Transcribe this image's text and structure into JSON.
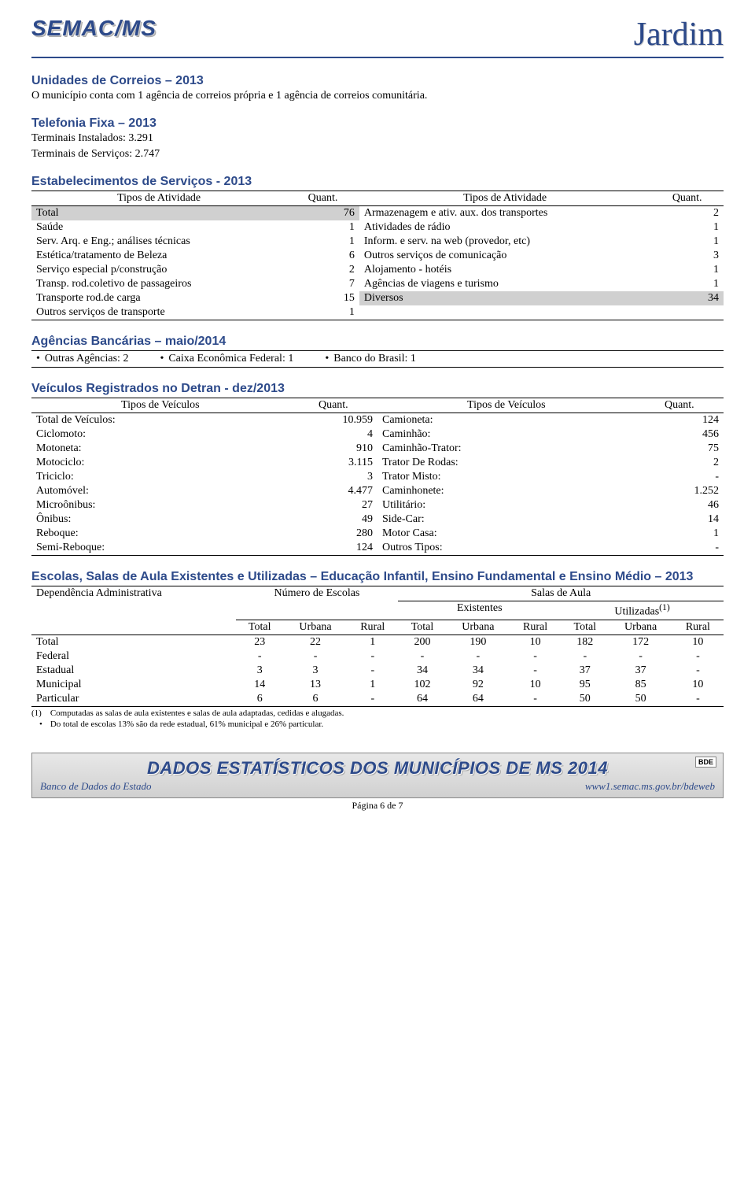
{
  "header": {
    "logo_left": "SEMAC/MS",
    "logo_right": "Jardim"
  },
  "correios": {
    "title": "Unidades de Correios – 2013",
    "text": "O município conta com 1 agência de correios própria e 1 agência de correios comunitária."
  },
  "telefonia": {
    "title": "Telefonia Fixa  – 2013",
    "line1": "Terminais Instalados: 3.291",
    "line2": "Terminais de Serviços: 2.747"
  },
  "estabelecimentos": {
    "title": "Estabelecimentos de Serviços - 2013",
    "col_headers": [
      "Tipos de Atividade",
      "Quant.",
      "Tipos de Atividade",
      "Quant."
    ],
    "rows": [
      {
        "l": "Total",
        "lv": "76",
        "r": "Armazenagem e ativ. aux. dos transportes",
        "rv": "2",
        "shade": true
      },
      {
        "l": "Saúde",
        "lv": "1",
        "r": "Atividades de rádio",
        "rv": "1"
      },
      {
        "l": "Serv. Arq. e Eng.; análises técnicas",
        "lv": "1",
        "r": "Inform. e serv. na web (provedor, etc)",
        "rv": "1"
      },
      {
        "l": "Estética/tratamento de Beleza",
        "lv": "6",
        "r": "Outros serviços de comunicação",
        "rv": "3"
      },
      {
        "l": "Serviço especial p/construção",
        "lv": "2",
        "r": "Alojamento - hotéis",
        "rv": "1"
      },
      {
        "l": "Transp. rod.coletivo de passageiros",
        "lv": "7",
        "r": "Agências de viagens e turismo",
        "rv": "1"
      },
      {
        "l": "Transporte rod.de carga",
        "lv": "15",
        "r": "Diversos",
        "rv": "34",
        "shade_r": true
      },
      {
        "l": "Outros serviços de transporte",
        "lv": "1",
        "r": "",
        "rv": ""
      }
    ]
  },
  "agencias": {
    "title": "Agências Bancárias – maio/2014",
    "items": [
      "Outras Agências: 2",
      "Caixa Econômica Federal: 1",
      "Banco do Brasil: 1"
    ]
  },
  "veiculos": {
    "title": "Veículos Registrados no Detran - dez/2013",
    "col_headers": [
      "Tipos de Veículos",
      "Quant.",
      "Tipos de Veículos",
      "Quant."
    ],
    "rows": [
      {
        "l": "Total de Veículos:",
        "lv": "10.959",
        "r": "Camioneta:",
        "rv": "124"
      },
      {
        "l": "Ciclomoto:",
        "lv": "4",
        "r": "Caminhão:",
        "rv": "456"
      },
      {
        "l": "Motoneta:",
        "lv": "910",
        "r": "Caminhão-Trator:",
        "rv": "75"
      },
      {
        "l": "Motociclo:",
        "lv": "3.115",
        "r": "Trator De Rodas:",
        "rv": "2"
      },
      {
        "l": "Triciclo:",
        "lv": "3",
        "r": "Trator Misto:",
        "rv": "-"
      },
      {
        "l": "Automóvel:",
        "lv": "4.477",
        "r": "Caminhonete:",
        "rv": "1.252"
      },
      {
        "l": "Microônibus:",
        "lv": "27",
        "r": "Utilitário:",
        "rv": "46"
      },
      {
        "l": "Ônibus:",
        "lv": "49",
        "r": "Side-Car:",
        "rv": "14"
      },
      {
        "l": "Reboque:",
        "lv": "280",
        "r": "Motor Casa:",
        "rv": "1"
      },
      {
        "l": "Semi-Reboque:",
        "lv": "124",
        "r": "Outros Tipos:",
        "rv": "-"
      }
    ]
  },
  "escolas": {
    "title": "Escolas, Salas de Aula Existentes e Utilizadas – Educação Infantil, Ensino Fundamental e Ensino Médio – 2013",
    "h1": {
      "dep": "Dependência Administrativa",
      "num": "Número de Escolas",
      "salas": "Salas de Aula"
    },
    "h2": {
      "exist": "Existentes",
      "util": "Utilizadas",
      "util_sup": "(1)"
    },
    "h3": [
      "Total",
      "Urbana",
      "Rural",
      "Total",
      "Urbana",
      "Rural",
      "Total",
      "Urbana",
      "Rural"
    ],
    "rows": [
      {
        "label": "Total",
        "v": [
          "23",
          "22",
          "1",
          "200",
          "190",
          "10",
          "182",
          "172",
          "10"
        ]
      },
      {
        "label": "Federal",
        "v": [
          "-",
          "-",
          "-",
          "-",
          "-",
          "-",
          "-",
          "-",
          "-"
        ]
      },
      {
        "label": "Estadual",
        "v": [
          "3",
          "3",
          "-",
          "34",
          "34",
          "-",
          "37",
          "37",
          "-"
        ]
      },
      {
        "label": "Municipal",
        "v": [
          "14",
          "13",
          "1",
          "102",
          "92",
          "10",
          "95",
          "85",
          "10"
        ]
      },
      {
        "label": "Particular",
        "v": [
          "6",
          "6",
          "-",
          "64",
          "64",
          "-",
          "50",
          "50",
          "-"
        ]
      }
    ],
    "footnote1_label": "(1)",
    "footnote1": "Computadas as salas de aula existentes e salas de aula adaptadas, cedidas e alugadas.",
    "footnote2": "Do total de escolas 13% são da rede estadual,  61% municipal e 26% particular."
  },
  "footer": {
    "title": "DADOS ESTATÍSTICOS DOS MUNICÍPIOS DE MS 2014",
    "left": "Banco de Dados do Estado",
    "right": "www1.semac.ms.gov.br/bdeweb",
    "badge": "BDE",
    "page": "Página 6 de 7"
  }
}
